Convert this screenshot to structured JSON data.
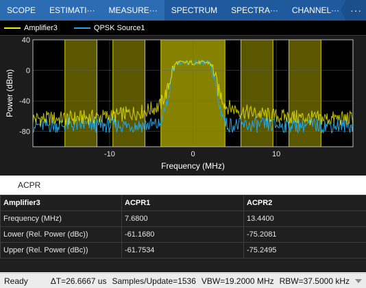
{
  "tabs": [
    {
      "label": "SCOPE",
      "active": false
    },
    {
      "label": "ESTIMATI···",
      "active": false
    },
    {
      "label": "MEASURE···",
      "active": false
    },
    {
      "label": "SPECTRUM",
      "active": true
    },
    {
      "label": "SPECTRA···",
      "active": true
    },
    {
      "label": "CHANNEL···",
      "active": true
    }
  ],
  "tab_menu_icon": "ellipsis-icon",
  "legend": [
    {
      "label": "Amplifier3",
      "color": "#f2f200"
    },
    {
      "label": "QPSK Source1",
      "color": "#22a6e6"
    }
  ],
  "chart_data": {
    "type": "line",
    "xlabel": "Frequency (MHz)",
    "ylabel": "Power (dBm)",
    "xlim": [
      -19.2,
      19.2
    ],
    "ylim": [
      -100,
      40
    ],
    "x_ticks": [
      -10,
      0,
      10
    ],
    "y_ticks": [
      40,
      0,
      -40,
      -80
    ],
    "grid": true,
    "background": "#000000",
    "channel_bands_mhz": [
      {
        "name": "main",
        "range": [
          -3.84,
          3.84
        ]
      },
      {
        "name": "adj-lower-1",
        "range": [
          -9.6,
          -5.76
        ]
      },
      {
        "name": "adj-upper-1",
        "range": [
          5.76,
          9.6
        ]
      },
      {
        "name": "adj-lower-2",
        "range": [
          -15.36,
          -11.52
        ]
      },
      {
        "name": "adj-upper-2",
        "range": [
          11.52,
          15.36
        ]
      }
    ],
    "band_color": "#d8d000",
    "series": [
      {
        "name": "Amplifier3",
        "color": "#f2f200",
        "x": [
          -19.2,
          -15,
          -10,
          -6,
          -4,
          -3,
          -2.5,
          -2,
          2,
          2.5,
          3,
          4,
          6,
          10,
          15,
          19.2
        ],
        "values": [
          -63,
          -63,
          -60,
          -54,
          -47,
          -25,
          0,
          10,
          10,
          0,
          -25,
          -47,
          -54,
          -60,
          -63,
          -63
        ]
      },
      {
        "name": "QPSK Source1",
        "color": "#22a6e6",
        "x": [
          -19.2,
          -15,
          -10,
          -6,
          -4,
          -3,
          -2.5,
          -2,
          2,
          2.5,
          3,
          4,
          6,
          10,
          15,
          19.2
        ],
        "values": [
          -72,
          -72,
          -72,
          -72,
          -71,
          -40,
          -5,
          10,
          10,
          -5,
          -40,
          -71,
          -72,
          -72,
          -72,
          -72
        ]
      }
    ]
  },
  "acpr": {
    "title": "ACPR",
    "headers": [
      "Amplifier3",
      "ACPR1",
      "ACPR2"
    ],
    "rows": [
      [
        "Frequency (MHz)",
        "7.6800",
        "13.4400"
      ],
      [
        "Lower (Rel. Power (dBc))",
        "-61.1680",
        "-75.2081"
      ],
      [
        "Upper (Rel. Power (dBc))",
        "-61.7534",
        "-75.2495"
      ]
    ]
  },
  "status": {
    "ready": "Ready",
    "delta_t": "ΔT=26.6667 us",
    "samples": "Samples/Update=1536",
    "vbw": "VBW=19.2000 MHz",
    "rbw": "RBW=37.5000 kHz"
  }
}
